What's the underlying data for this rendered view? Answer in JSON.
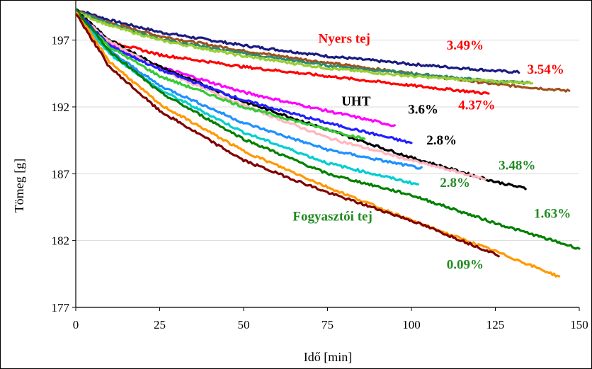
{
  "chart_data": {
    "type": "line",
    "title": "",
    "xlabel": "Idő [min]",
    "ylabel": "Tömeg [g]",
    "xlim": [
      0,
      150
    ],
    "ylim": [
      177,
      200
    ],
    "xticks": [
      "0",
      "25",
      "50",
      "75",
      "100",
      "125",
      "150"
    ],
    "xtick_values": [
      0,
      25,
      50,
      75,
      100,
      125,
      150
    ],
    "yticks": [
      "177",
      "182",
      "187",
      "192",
      "197"
    ],
    "ytick_values": [
      177,
      182,
      187,
      192,
      197
    ],
    "grid": "horizontal",
    "legend": "none",
    "series": [
      {
        "color": "#1a1a80",
        "x": [
          0,
          10,
          25,
          50,
          75,
          100,
          125,
          132
        ],
        "y": [
          199.3,
          198.5,
          197.6,
          196.6,
          195.8,
          195.2,
          194.7,
          194.6
        ]
      },
      {
        "color": "#a0501e",
        "x": [
          0,
          10,
          25,
          50,
          75,
          100,
          125,
          147
        ],
        "y": [
          199.2,
          198.3,
          197.3,
          196.2,
          195.3,
          194.5,
          193.7,
          193.2
        ]
      },
      {
        "color": "#2e8b6e",
        "x": [
          0,
          10,
          25,
          50,
          75,
          100,
          125,
          135
        ],
        "y": [
          199.2,
          198.2,
          197.1,
          196.0,
          195.1,
          194.5,
          193.9,
          193.8
        ]
      },
      {
        "color": "#9acd32",
        "x": [
          0,
          10,
          25,
          50,
          75,
          100,
          125,
          136
        ],
        "y": [
          199.1,
          198.1,
          197.0,
          195.8,
          194.9,
          194.3,
          193.9,
          193.8
        ]
      },
      {
        "color": "#ff0000",
        "x": [
          0,
          10,
          25,
          50,
          75,
          100,
          123
        ],
        "y": [
          199.2,
          196.9,
          195.9,
          195.0,
          194.3,
          193.6,
          193.0
        ]
      },
      {
        "color": "#ff00ff",
        "x": [
          0,
          5,
          15,
          25,
          50,
          75,
          95
        ],
        "y": [
          199.2,
          197.5,
          196.0,
          195.0,
          193.1,
          191.7,
          190.6
        ]
      },
      {
        "color": "#000000",
        "x": [
          0,
          10,
          25,
          50,
          75,
          100,
          125,
          134
        ],
        "y": [
          199.2,
          197.0,
          195.0,
          192.4,
          190.3,
          188.2,
          186.4,
          185.9
        ]
      },
      {
        "color": "#ffb6c1",
        "x": [
          0,
          10,
          25,
          50,
          75,
          100,
          122
        ],
        "y": [
          199.1,
          196.9,
          194.8,
          192.1,
          189.7,
          188.0,
          186.6
        ]
      },
      {
        "color": "#2020ff",
        "x": [
          0,
          10,
          25,
          50,
          75,
          100
        ],
        "y": [
          199.2,
          196.6,
          194.8,
          192.5,
          190.8,
          189.3
        ]
      },
      {
        "color": "#33cc33",
        "x": [
          0,
          10,
          25,
          50,
          75,
          86
        ],
        "y": [
          199.0,
          196.5,
          194.3,
          192.0,
          190.3,
          189.6
        ]
      },
      {
        "color": "#1e90ff",
        "x": [
          0,
          10,
          25,
          50,
          75,
          103
        ],
        "y": [
          199.0,
          196.2,
          193.6,
          190.8,
          188.8,
          187.4
        ]
      },
      {
        "color": "#00ced1",
        "x": [
          0,
          10,
          25,
          50,
          75,
          102
        ],
        "y": [
          199.0,
          196.0,
          193.3,
          190.1,
          187.8,
          186.2
        ]
      },
      {
        "color": "#008000",
        "x": [
          0,
          10,
          25,
          50,
          75,
          100,
          125,
          150
        ],
        "y": [
          199.3,
          196.2,
          193.1,
          189.6,
          187.0,
          185.4,
          183.3,
          181.4
        ]
      },
      {
        "color": "#ff9900",
        "x": [
          0,
          10,
          25,
          50,
          75,
          100,
          125,
          144
        ],
        "y": [
          199.1,
          195.4,
          192.2,
          188.7,
          186.0,
          183.5,
          181.2,
          179.3
        ]
      },
      {
        "color": "#800000",
        "x": [
          0,
          10,
          25,
          50,
          75,
          100,
          126
        ],
        "y": [
          199.0,
          195.0,
          191.7,
          188.0,
          185.6,
          183.5,
          180.9
        ]
      }
    ],
    "annotations": [
      {
        "text": "Nyers tej",
        "color": "#ff0000",
        "x": 80,
        "y": 196.8
      },
      {
        "text": "3.49%",
        "color": "#ff0000",
        "x": 116,
        "y": 196.3
      },
      {
        "text": "3.54%",
        "color": "#ff0000",
        "x": 140,
        "y": 194.5
      },
      {
        "text": "UHT",
        "color": "#000000",
        "x": 83.5,
        "y": 192.1
      },
      {
        "text": "4.37%",
        "color": "#ff0000",
        "x": 119.5,
        "y": 191.8
      },
      {
        "text": "3.6%",
        "color": "#000000",
        "x": 103.5,
        "y": 191.5
      },
      {
        "text": "2.8%",
        "color": "#000000",
        "x": 109,
        "y": 189.2
      },
      {
        "text": "3.48%",
        "color": "#228b22",
        "x": 131.5,
        "y": 187.3
      },
      {
        "text": "2.8%",
        "color": "#228b22",
        "x": 113,
        "y": 186.0
      },
      {
        "text": "Fogyasztói tej",
        "color": "#228b22",
        "x": 76.5,
        "y": 183.5
      },
      {
        "text": "1.63%",
        "color": "#228b22",
        "x": 142,
        "y": 183.7
      },
      {
        "text": "0.09%",
        "color": "#228b22",
        "x": 116,
        "y": 179.9
      }
    ]
  }
}
